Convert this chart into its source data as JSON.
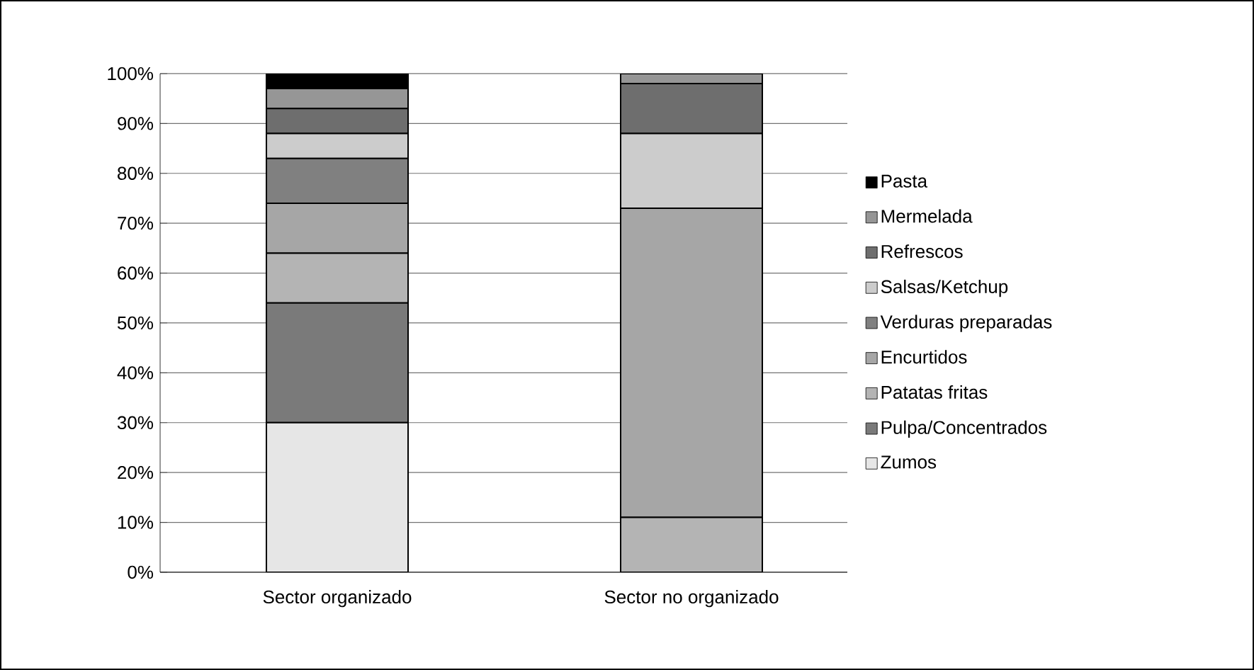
{
  "chart_data": {
    "type": "bar",
    "stacked": true,
    "categories": [
      "Sector organizado",
      "Sector no organizado"
    ],
    "series": [
      {
        "name": "Zumos",
        "color": "#e6e6e6",
        "values": [
          30,
          null
        ]
      },
      {
        "name": "Pulpa/Concentrados",
        "color": "#7a7a7a",
        "values": [
          24,
          null
        ]
      },
      {
        "name": "Patatas fritas",
        "color": "#b4b4b4",
        "values": [
          10,
          11
        ]
      },
      {
        "name": "Encurtidos",
        "color": "#a6a6a6",
        "values": [
          10,
          62
        ]
      },
      {
        "name": "Verduras preparadas",
        "color": "#808080",
        "values": [
          9,
          null
        ]
      },
      {
        "name": "Salsas/Ketchup",
        "color": "#cccccc",
        "values": [
          5,
          15
        ]
      },
      {
        "name": "Refrescos",
        "color": "#6e6e6e",
        "values": [
          5,
          10
        ]
      },
      {
        "name": "Mermelada",
        "color": "#969696",
        "values": [
          4,
          2
        ]
      },
      {
        "name": "Pasta",
        "color": "#000000",
        "values": [
          3,
          null
        ]
      }
    ],
    "ylim": [
      0,
      100
    ],
    "yticks": [
      {
        "value": 0,
        "label": "0%"
      },
      {
        "value": 10,
        "label": "10%"
      },
      {
        "value": 20,
        "label": "20%"
      },
      {
        "value": 30,
        "label": "30%"
      },
      {
        "value": 40,
        "label": "40%"
      },
      {
        "value": 50,
        "label": "50%"
      },
      {
        "value": 60,
        "label": "60%"
      },
      {
        "value": 70,
        "label": "70%"
      },
      {
        "value": 80,
        "label": "80%"
      },
      {
        "value": 90,
        "label": "90%"
      },
      {
        "value": 100,
        "label": "100%"
      }
    ],
    "grid": "y",
    "legend": "right"
  }
}
